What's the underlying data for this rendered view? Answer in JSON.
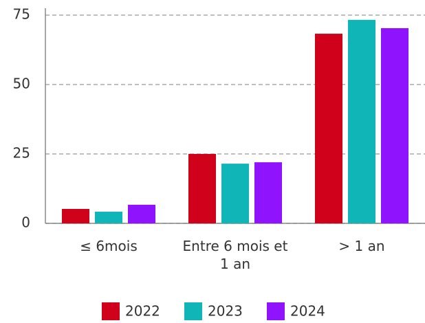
{
  "chart_data": {
    "type": "bar",
    "categories": [
      "≤ 6mois",
      "Entre 6 mois et 1 an",
      "> 1 an"
    ],
    "series": [
      {
        "name": "2022",
        "color": "#d0021b",
        "values": [
          5.2,
          25,
          68.3
        ]
      },
      {
        "name": "2023",
        "color": "#10b5b8",
        "values": [
          4.2,
          21.5,
          73.3
        ]
      },
      {
        "name": "2024",
        "color": "#9013fe",
        "values": [
          6.7,
          22,
          70.3
        ]
      }
    ],
    "ylim": [
      0,
      75
    ],
    "yticks": [
      0,
      25,
      50,
      75
    ],
    "grid": true,
    "legend": "bottom"
  }
}
